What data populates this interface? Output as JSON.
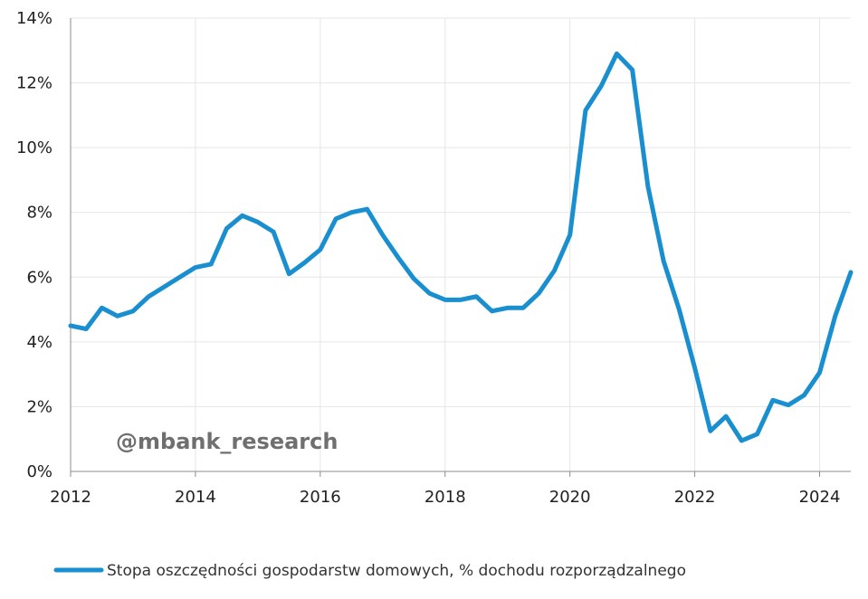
{
  "chart_data": {
    "type": "line",
    "title": "",
    "xlabel": "",
    "ylabel": "",
    "xlim": [
      2012,
      2024.5
    ],
    "ylim": [
      0,
      14
    ],
    "grid": true,
    "legend_position": "bottom",
    "x_ticks": [
      2012,
      2014,
      2016,
      2018,
      2020,
      2022,
      2024
    ],
    "x_tick_labels": [
      "2012",
      "2014",
      "2016",
      "2018",
      "2020",
      "2022",
      "2024"
    ],
    "y_ticks": [
      0,
      2,
      4,
      6,
      8,
      10,
      12,
      14
    ],
    "y_tick_labels": [
      "0%",
      "2%",
      "4%",
      "6%",
      "8%",
      "10%",
      "12%",
      "14%"
    ],
    "series": [
      {
        "name": "Stopa oszczędności gospodarstw domowych, % dochodu rozporządzalnego",
        "color": "#1a8fd0",
        "x": [
          2012.0,
          2012.25,
          2012.5,
          2012.75,
          2013.0,
          2013.25,
          2013.5,
          2013.75,
          2014.0,
          2014.25,
          2014.5,
          2014.75,
          2015.0,
          2015.25,
          2015.5,
          2015.75,
          2016.0,
          2016.25,
          2016.5,
          2016.75,
          2017.0,
          2017.25,
          2017.5,
          2017.75,
          2018.0,
          2018.25,
          2018.5,
          2018.75,
          2019.0,
          2019.25,
          2019.5,
          2019.75,
          2020.0,
          2020.25,
          2020.5,
          2020.75,
          2021.0,
          2021.25,
          2021.5,
          2021.75,
          2022.0,
          2022.25,
          2022.5,
          2022.75,
          2023.0,
          2023.25,
          2023.5,
          2023.75,
          2024.0,
          2024.25,
          2024.5
        ],
        "y": [
          4.5,
          4.4,
          5.05,
          4.8,
          4.95,
          5.4,
          5.7,
          6.0,
          6.3,
          6.4,
          7.5,
          7.9,
          7.7,
          7.4,
          6.1,
          6.45,
          6.85,
          7.8,
          8.0,
          8.1,
          7.3,
          6.6,
          5.95,
          5.5,
          5.3,
          5.3,
          5.4,
          4.95,
          5.05,
          5.05,
          5.5,
          6.2,
          7.3,
          11.15,
          11.9,
          12.9,
          12.4,
          8.8,
          6.5,
          5.0,
          3.2,
          1.25,
          1.7,
          0.95,
          1.15,
          2.2,
          2.05,
          2.35,
          3.05,
          4.8,
          6.15
        ]
      }
    ]
  },
  "watermark": {
    "text": "@mbank_research",
    "color": "#6f6f6f"
  }
}
